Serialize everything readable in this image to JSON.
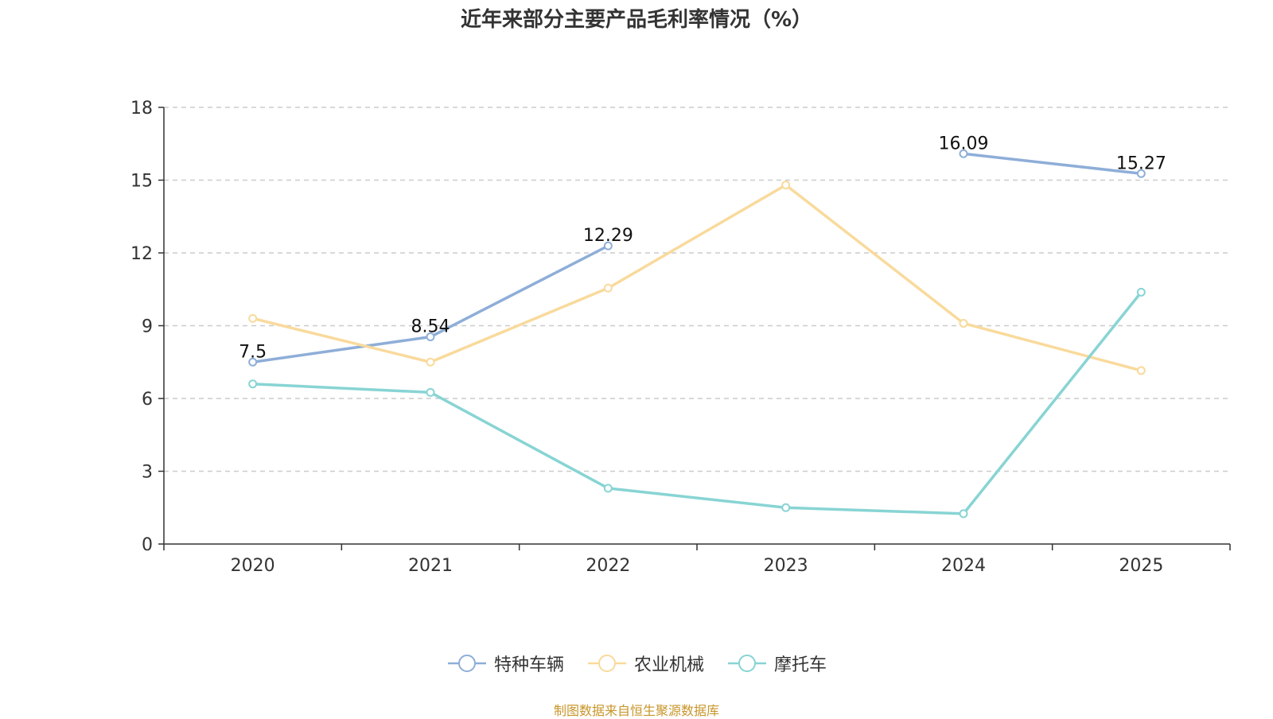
{
  "chart_data": {
    "type": "line",
    "title": "近年来部分主要产品毛利率情况（%）",
    "categories": [
      "2020",
      "2021",
      "2022",
      "2023",
      "2024",
      "2025"
    ],
    "ylim": [
      0,
      18
    ],
    "yticks": [
      0,
      3,
      6,
      9,
      12,
      15,
      18
    ],
    "grid": true,
    "legend_position": "bottom",
    "series": [
      {
        "name": "特种车辆",
        "color": "#8eaed8",
        "values": [
          7.5,
          8.54,
          12.29,
          null,
          16.09,
          15.27
        ],
        "labels": [
          "7.5",
          "8.54",
          "12.29",
          null,
          "16.09",
          "15.27"
        ]
      },
      {
        "name": "农业机械",
        "color": "#f9da9c",
        "values": [
          9.3,
          7.5,
          10.55,
          14.8,
          9.1,
          7.15
        ],
        "labels": [
          null,
          null,
          null,
          null,
          null,
          null
        ]
      },
      {
        "name": "摩托车",
        "color": "#88d4d4",
        "values": [
          6.6,
          6.25,
          2.3,
          1.5,
          1.25,
          10.38
        ],
        "labels": [
          null,
          null,
          null,
          null,
          null,
          null
        ]
      }
    ]
  },
  "source": {
    "text": "制图数据来自恒生聚源数据库",
    "color": "#c8962a"
  }
}
